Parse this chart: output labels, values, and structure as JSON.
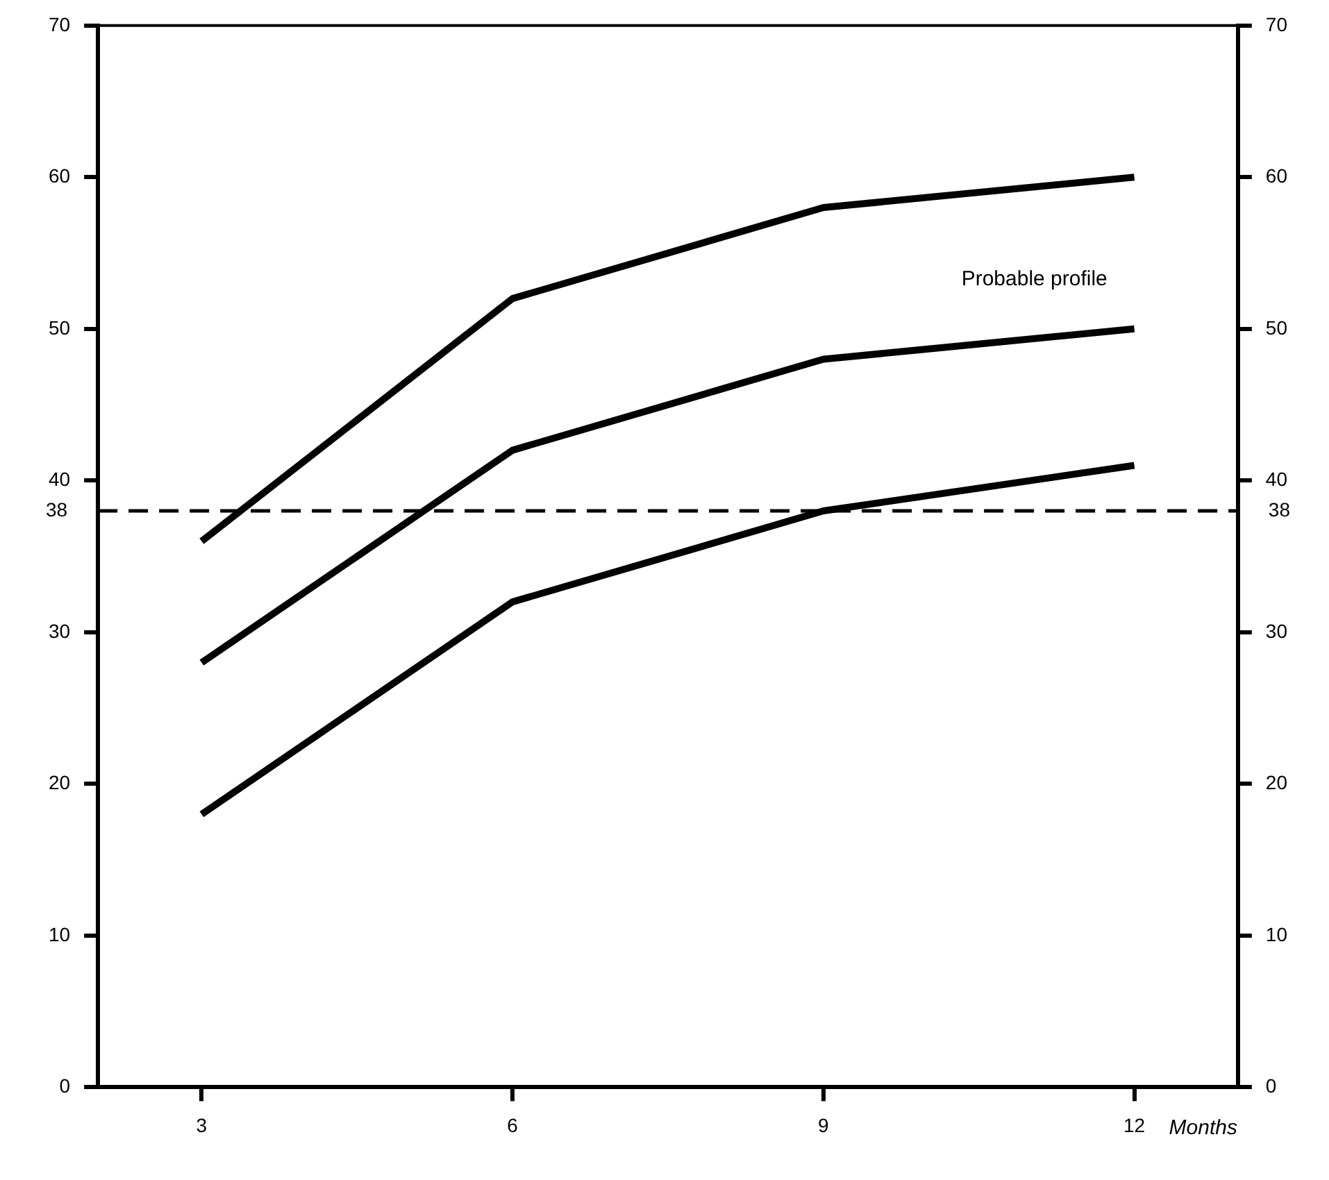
{
  "chart_data": {
    "type": "line",
    "xlabel": "Months",
    "x": [
      3,
      6,
      9,
      12
    ],
    "series": [
      {
        "color": "#000000",
        "values": [
          36,
          52,
          58,
          60
        ]
      },
      {
        "name": "Probable profile",
        "color": "#000000",
        "values": [
          28,
          42,
          48,
          50
        ]
      },
      {
        "color": "#000000",
        "values": [
          18,
          32,
          38,
          41
        ]
      }
    ],
    "xlim": [
      2,
      13
    ],
    "xticks": [
      3,
      6,
      9,
      12
    ],
    "ylim": [
      0,
      70
    ],
    "yticks": [
      0,
      10,
      20,
      30,
      40,
      50,
      60,
      70
    ],
    "y2lim": [
      0,
      70
    ],
    "y2ticks": [
      0,
      10,
      20,
      30,
      40,
      50,
      60,
      70
    ],
    "ref_lines": [
      {
        "axis": "y",
        "value": 38,
        "label": "38",
        "line_style": "dashed",
        "color": "#000000"
      }
    ],
    "grid": false,
    "legend": false,
    "marker": "none",
    "line_style": "solid"
  }
}
